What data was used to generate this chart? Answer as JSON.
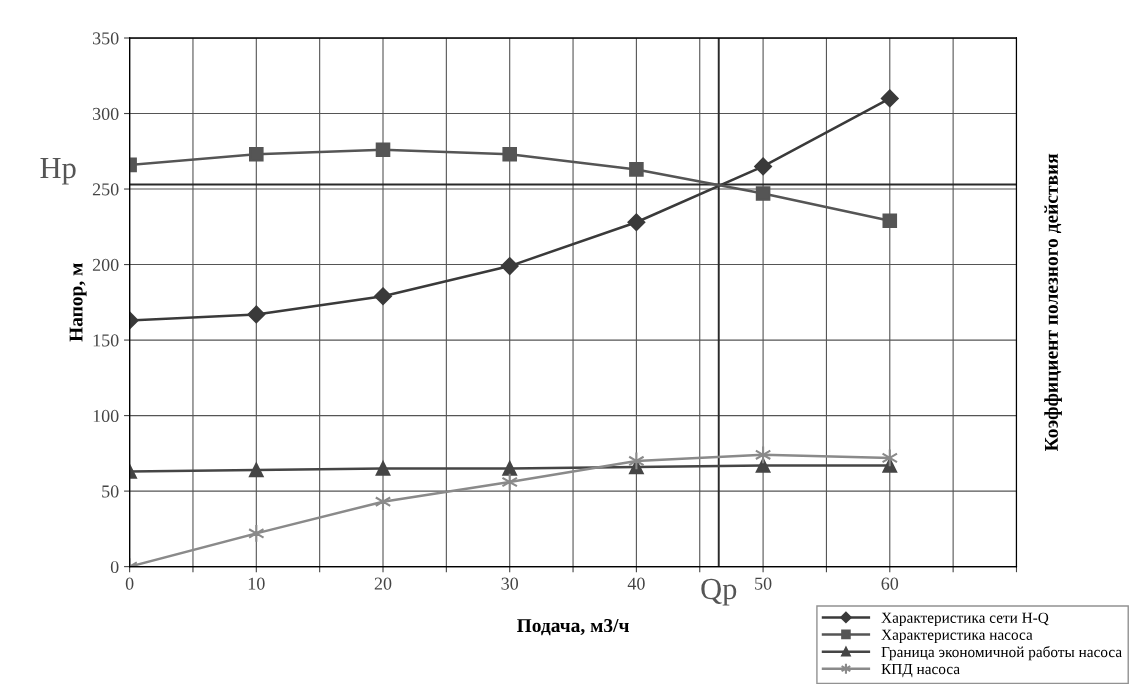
{
  "chart_data": {
    "type": "line",
    "xlabel": "Подача, м3/ч",
    "ylabel": "Напор, м",
    "y2label": "Коэффициент полезного действия",
    "x": [
      0,
      10,
      20,
      30,
      40,
      50,
      60
    ],
    "series": [
      {
        "name": "Характеристика сети H-Q",
        "color": "#3a3a3a",
        "marker": "diamond",
        "values": [
          163,
          167,
          179,
          199,
          228,
          265,
          310
        ]
      },
      {
        "name": "Характеристика насоса",
        "color": "#555555",
        "marker": "square",
        "values": [
          266,
          273,
          276,
          273,
          263,
          247,
          229
        ]
      },
      {
        "name": "Граница экономичной работы насоса",
        "color": "#454545",
        "marker": "triangle",
        "values": [
          63,
          64,
          65,
          65,
          66,
          67,
          67
        ]
      },
      {
        "name": "КПД насоса",
        "color": "#8a8a8a",
        "marker": "cross",
        "values": [
          0,
          22,
          43,
          56,
          70,
          74,
          72
        ]
      }
    ],
    "xlim": [
      0,
      70
    ],
    "ylim": [
      0,
      350
    ],
    "xticks": [
      0,
      {
        "value": 5,
        "label": null
      },
      10,
      {
        "value": 15,
        "label": null
      },
      20,
      {
        "value": 25,
        "label": null
      },
      30,
      {
        "value": 35,
        "label": null
      },
      40,
      {
        "value": 45,
        "label": null
      },
      50,
      {
        "value": 55,
        "label": null
      },
      60,
      {
        "value": 65,
        "label": null
      },
      {
        "value": 70,
        "label": null
      }
    ],
    "yticks": [
      0,
      50,
      100,
      150,
      200,
      250,
      300,
      350
    ],
    "ref_lines": [
      {
        "axis": "y",
        "value": 253,
        "label": "Нр",
        "color": "#2a2a2a"
      },
      {
        "axis": "x",
        "value": 46.5,
        "label": "Qр",
        "color": "#2a2a2a"
      }
    ],
    "grid": true,
    "legend": "bottom right"
  }
}
